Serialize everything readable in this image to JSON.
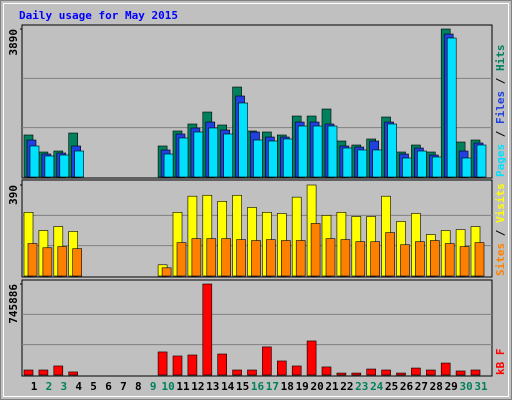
{
  "chart_data": {
    "type": "bar",
    "title": "Daily usage for May 2015",
    "title_color": "#0000ff",
    "categories": [
      "1",
      "2",
      "3",
      "4",
      "5",
      "6",
      "7",
      "8",
      "9",
      "10",
      "11",
      "12",
      "13",
      "14",
      "15",
      "16",
      "17",
      "18",
      "19",
      "20",
      "21",
      "22",
      "23",
      "24",
      "25",
      "26",
      "27",
      "28",
      "29",
      "30",
      "31"
    ],
    "category_colors": [
      "#000000",
      "#00805c",
      "#00805c",
      "#000000",
      "#000000",
      "#000000",
      "#000000",
      "#000000",
      "#00805c",
      "#00805c",
      "#000000",
      "#000000",
      "#000000",
      "#000000",
      "#000000",
      "#00805c",
      "#00805c",
      "#000000",
      "#000000",
      "#000000",
      "#000000",
      "#000000",
      "#00805c",
      "#00805c",
      "#000000",
      "#000000",
      "#000000",
      "#000000",
      "#000000",
      "#00805c",
      "#00805c"
    ],
    "legend_separator": " / ",
    "panels": [
      {
        "ylim": [
          0,
          3890
        ],
        "yticks": [
          3890
        ],
        "series": [
          {
            "name": "Hits",
            "color": "#00805c",
            "values": [
              1104,
              657,
              683,
              1156,
              0,
              0,
              0,
              0,
              0,
              815,
              1209,
              1393,
              1708,
              1367,
              2365,
              1209,
              1183,
              1104,
              1603,
              1603,
              1787,
              946,
              841,
              999,
              1577,
              657,
              841,
              657,
              3890,
              920,
              972
            ]
          },
          {
            "name": "Files",
            "color": "#2040e0",
            "values": [
              972,
              604,
              631,
              815,
              0,
              0,
              0,
              0,
              0,
              710,
              1130,
              1288,
              1445,
              1235,
              2129,
              1183,
              1051,
              1051,
              1445,
              1445,
              1393,
              815,
              788,
              946,
              1445,
              604,
              762,
              578,
              3758,
              683,
              894
            ]
          },
          {
            "name": "Pages",
            "color": "#00e0ff",
            "values": [
              815,
              552,
              578,
              683,
              0,
              0,
              0,
              0,
              0,
              604,
              1025,
              1183,
              1288,
              1130,
              1945,
              972,
              946,
              999,
              1340,
              1340,
              1340,
              762,
              710,
              710,
              1393,
              499,
              683,
              526,
              3653,
              499,
              841
            ]
          }
        ]
      },
      {
        "ylim": [
          0,
          390
        ],
        "yticks": [
          390
        ],
        "series": [
          {
            "name": "Visits",
            "color": "#ffff00",
            "values": [
              273,
              195,
              212,
              191,
              0,
              0,
              0,
              0,
              0,
              48,
              273,
              342,
              346,
              320,
              346,
              294,
              273,
              268,
              338,
              390,
              260,
              273,
              255,
              255,
              342,
              234,
              268,
              178,
              195,
              199,
              212
            ]
          },
          {
            "name": "Sites",
            "color": "#ff8000",
            "values": [
              139,
              121,
              126,
              117,
              0,
              0,
              0,
              0,
              0,
              35,
              143,
              160,
              160,
              160,
              156,
              152,
              156,
              152,
              152,
              225,
              160,
              156,
              147,
              147,
              186,
              134,
              147,
              152,
              139,
              126,
              143
            ]
          }
        ]
      },
      {
        "ylim": [
          0,
          745886
        ],
        "yticks": [
          745886
        ],
        "series": [
          {
            "name": "kB F",
            "color": "#ff0000",
            "values": [
              41000,
              41000,
              74000,
              25000,
              0,
              0,
              0,
              0,
              0,
              189000,
              156000,
              164000,
              745886,
              172000,
              41000,
              41000,
              230000,
              115000,
              74000,
              279000,
              66000,
              16000,
              16000,
              49000,
              41000,
              16000,
              57000,
              41000,
              98000,
              33000,
              41000
            ]
          }
        ]
      }
    ]
  }
}
